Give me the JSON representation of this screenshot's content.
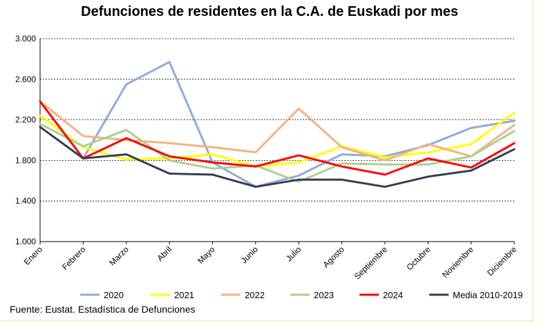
{
  "chart_data": {
    "type": "line",
    "title": "Defunciones de residentes en la C.A. de Euskadi por mes",
    "xlabel": "",
    "ylabel": "",
    "ylim": [
      1000,
      3000
    ],
    "yticks": [
      "1.000",
      "1.400",
      "1.800",
      "2.200",
      "2.600",
      "3.000"
    ],
    "ytick_values": [
      1000,
      1400,
      1800,
      2200,
      2600,
      3000
    ],
    "grid": "horizontal-dashed",
    "legend_position": "bottom",
    "categories": [
      "Enero",
      "Febrero",
      "Marzo",
      "Abril",
      "Mayo",
      "Junio",
      "Julio",
      "Agosto",
      "Septiembre",
      "Octubre",
      "Noviembre",
      "Diciembre"
    ],
    "series": [
      {
        "name": "2020",
        "color": "#8faadc",
        "values": [
          2380,
          1820,
          2550,
          2770,
          1780,
          1540,
          1650,
          1860,
          1840,
          1950,
          2120,
          2190
        ]
      },
      {
        "name": "2021",
        "color": "#ffff00",
        "values": [
          2240,
          1930,
          1810,
          1820,
          1860,
          1740,
          1780,
          1940,
          1830,
          1880,
          1960,
          2270
        ]
      },
      {
        "name": "2022",
        "color": "#f4b183",
        "values": [
          2380,
          2040,
          2000,
          1970,
          1930,
          1880,
          2310,
          1930,
          1800,
          1960,
          1840,
          2150
        ]
      },
      {
        "name": "2023",
        "color": "#a9d18e",
        "values": [
          2160,
          1940,
          2100,
          1800,
          1720,
          1750,
          1590,
          1770,
          1760,
          1760,
          1840,
          2090
        ]
      },
      {
        "name": "2024",
        "color": "#ff0000",
        "values": [
          2380,
          1820,
          2020,
          1840,
          1780,
          1740,
          1850,
          1740,
          1660,
          1820,
          1730,
          1970
        ]
      },
      {
        "name": "Media 2010-2019",
        "color": "#333f50",
        "values": [
          2130,
          1820,
          1860,
          1670,
          1660,
          1540,
          1610,
          1610,
          1540,
          1640,
          1700,
          1910
        ]
      }
    ]
  },
  "source": "Fuente: Eustat. Estadística de Defunciones"
}
